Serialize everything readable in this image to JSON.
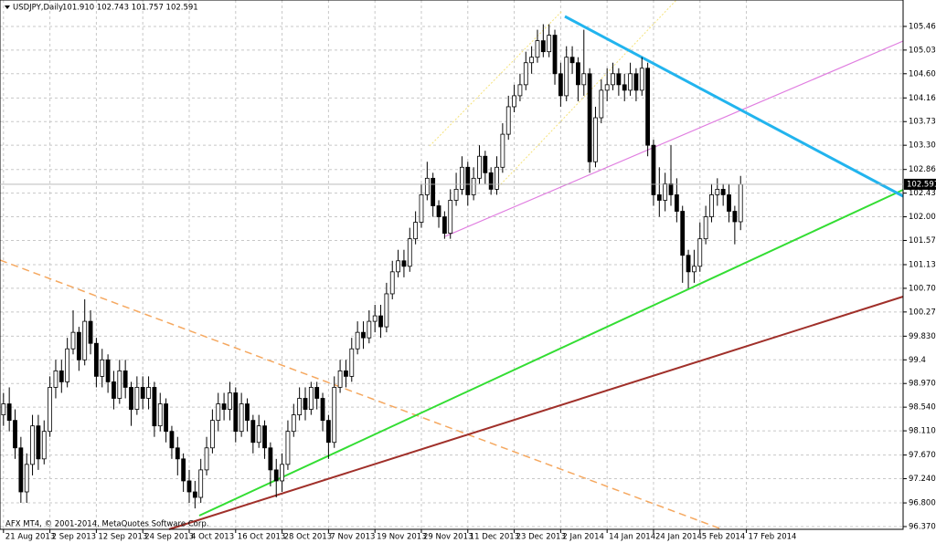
{
  "chart_data": {
    "type": "candlestick",
    "title": "USDJPY,Daily",
    "subtitle": "101.910 102.743 101.757 102.591",
    "annotation": "AFX MT4, © 2001-2014, MetaQuotes Software Corp.",
    "grid": true,
    "up_color": "#ffffff",
    "down_color": "#000000",
    "xlim": [
      -0.6,
      155
    ],
    "ylim": [
      96.32,
      105.94
    ],
    "xticks": [
      {
        "value": 0,
        "label": "21 Aug 2013"
      },
      {
        "value": 8,
        "label": "2 Sep 2013"
      },
      {
        "value": 16,
        "label": "12 Sep 2013"
      },
      {
        "value": 24,
        "label": "24 Sep 2013"
      },
      {
        "value": 32,
        "label": "4 Oct 2013"
      },
      {
        "value": 40,
        "label": "16 Oct 2013"
      },
      {
        "value": 48,
        "label": "28 Oct 2013"
      },
      {
        "value": 56,
        "label": "7 Nov 2013"
      },
      {
        "value": 64,
        "label": "19 Nov 2013"
      },
      {
        "value": 72,
        "label": "29 Nov 2013"
      },
      {
        "value": 80,
        "label": "11 Dec 2013"
      },
      {
        "value": 88,
        "label": "23 Dec 2013"
      },
      {
        "value": 96,
        "label": "2 Jan 2014"
      },
      {
        "value": 104,
        "label": "14 Jan 2014"
      },
      {
        "value": 112,
        "label": "24 Jan 2014"
      },
      {
        "value": 120,
        "label": "5 Feb 2014"
      },
      {
        "value": 128,
        "label": "17 Feb 2014"
      }
    ],
    "yticks": [
      {
        "value": 105.46,
        "label": "105.460"
      },
      {
        "value": 105.03,
        "label": "105.030"
      },
      {
        "value": 104.6,
        "label": "104.600"
      },
      {
        "value": 104.16,
        "label": "104.160"
      },
      {
        "value": 103.73,
        "label": "103.730"
      },
      {
        "value": 103.3,
        "label": "103.300"
      },
      {
        "value": 102.86,
        "label": "102.860"
      },
      {
        "value": 102.43,
        "label": "102.430"
      },
      {
        "value": 102.0,
        "label": "102.000"
      },
      {
        "value": 101.57,
        "label": "101.570"
      },
      {
        "value": 101.13,
        "label": "101.130"
      },
      {
        "value": 100.7,
        "label": "100.700"
      },
      {
        "value": 100.27,
        "label": "100.270"
      },
      {
        "value": 99.83,
        "label": "99.830"
      },
      99.4,
      {
        "value": 98.97,
        "label": "98.970"
      },
      {
        "value": 98.54,
        "label": "98.540"
      },
      {
        "value": 98.11,
        "label": "98.110"
      },
      {
        "value": 97.67,
        "label": "97.670"
      },
      {
        "value": 97.24,
        "label": "97.240"
      },
      {
        "value": 96.8,
        "label": "96.800"
      },
      {
        "value": 96.37,
        "label": "96.370"
      }
    ],
    "open": [
      98.4,
      98.6,
      98.3,
      97.8,
      97.0,
      97.5,
      98.2,
      97.6,
      98.1,
      98.9,
      99.2,
      99.0,
      99.6,
      99.9,
      99.4,
      100.1,
      99.7,
      99.1,
      99.4,
      99.0,
      98.7,
      99.2,
      98.9,
      98.5,
      98.9,
      98.7,
      98.9,
      98.2,
      98.6,
      98.1,
      97.8,
      97.6,
      97.2,
      97.0,
      96.9,
      97.4,
      97.8,
      98.3,
      98.6,
      98.5,
      98.8,
      98.1,
      98.6,
      98.3,
      97.9,
      98.2,
      97.8,
      97.4,
      97.2,
      97.5,
      98.1,
      98.4,
      98.7,
      98.5,
      98.9,
      98.7,
      98.3,
      97.9,
      98.9,
      99.2,
      99.1,
      99.6,
      99.9,
      99.8,
      100.1,
      100.2,
      100.0,
      100.6,
      101.0,
      101.2,
      101.1,
      101.6,
      101.9,
      102.4,
      102.7,
      102.2,
      102.0,
      101.7,
      102.3,
      102.5,
      102.9,
      102.4,
      102.7,
      103.1,
      102.8,
      102.5,
      102.9,
      103.5,
      104.0,
      104.2,
      104.4,
      104.8,
      104.9,
      105.2,
      105.0,
      105.3,
      104.6,
      104.2,
      104.9,
      104.8,
      104.4,
      104.6,
      103.0,
      103.8,
      104.3,
      104.4,
      104.6,
      104.4,
      104.3,
      104.6,
      104.3,
      104.7,
      103.3,
      102.4,
      102.3,
      102.6,
      102.4,
      102.1,
      101.3,
      101.0,
      101.1,
      101.6,
      102.0,
      102.4,
      102.5,
      102.4,
      102.1,
      101.91
    ],
    "high": [
      98.8,
      98.9,
      98.5,
      98.0,
      97.7,
      98.4,
      98.4,
      98.3,
      99.1,
      99.4,
      99.4,
      99.8,
      100.3,
      100.0,
      100.5,
      100.3,
      99.8,
      99.6,
      99.5,
      99.2,
      99.4,
      99.4,
      99.0,
      99.1,
      99.1,
      99.1,
      99.0,
      98.8,
      98.7,
      98.2,
      98.0,
      97.7,
      97.4,
      97.2,
      97.6,
      98.0,
      98.5,
      98.8,
      98.8,
      99.0,
      98.9,
      98.8,
      98.7,
      98.4,
      98.4,
      98.3,
      97.9,
      97.6,
      97.7,
      98.3,
      98.6,
      98.9,
      98.9,
      99.0,
      99.0,
      98.8,
      98.4,
      99.1,
      99.4,
      99.4,
      99.8,
      100.1,
      100.1,
      100.3,
      100.4,
      100.4,
      100.8,
      101.2,
      101.4,
      101.4,
      101.8,
      102.1,
      102.6,
      103.0,
      102.8,
      102.3,
      102.1,
      102.5,
      102.8,
      103.1,
      103.0,
      102.9,
      103.3,
      103.2,
      102.9,
      103.1,
      103.7,
      104.2,
      104.4,
      104.6,
      105.0,
      105.1,
      105.4,
      105.5,
      105.5,
      105.4,
      104.8,
      105.1,
      105.1,
      104.9,
      105.4,
      104.7,
      104.0,
      104.5,
      104.7,
      104.8,
      104.7,
      104.6,
      104.8,
      104.7,
      104.9,
      104.8,
      103.4,
      102.9,
      102.8,
      103.3,
      102.7,
      102.2,
      101.4,
      101.4,
      101.9,
      102.2,
      102.6,
      102.7,
      102.6,
      102.6,
      102.2,
      102.743
    ],
    "low": [
      98.2,
      98.1,
      97.6,
      96.8,
      96.8,
      97.3,
      97.4,
      97.5,
      98.0,
      98.7,
      98.8,
      98.9,
      99.5,
      99.2,
      99.3,
      99.5,
      98.9,
      98.9,
      98.8,
      98.5,
      98.6,
      98.7,
      98.2,
      98.4,
      98.5,
      98.5,
      98.0,
      98.1,
      97.9,
      97.6,
      97.3,
      97.0,
      96.8,
      96.7,
      96.8,
      97.3,
      97.7,
      98.1,
      98.3,
      98.3,
      97.9,
      98.0,
      98.1,
      97.7,
      97.8,
      97.6,
      97.1,
      96.9,
      97.0,
      97.4,
      98.0,
      98.3,
      98.3,
      98.4,
      98.5,
      98.1,
      97.6,
      97.8,
      98.8,
      98.9,
      99.0,
      99.5,
      99.6,
      99.7,
      99.9,
      99.8,
      99.9,
      100.5,
      100.9,
      100.9,
      101.0,
      101.5,
      101.8,
      102.3,
      102.0,
      101.8,
      101.6,
      101.6,
      102.2,
      102.4,
      102.2,
      102.3,
      102.6,
      102.6,
      102.4,
      102.4,
      102.8,
      103.4,
      103.9,
      104.1,
      104.3,
      104.6,
      104.8,
      104.9,
      104.9,
      104.4,
      104.0,
      104.1,
      104.6,
      104.1,
      104.2,
      102.8,
      102.9,
      103.7,
      104.1,
      104.3,
      104.2,
      104.1,
      104.2,
      104.1,
      104.2,
      103.1,
      102.2,
      102.0,
      102.1,
      102.2,
      101.9,
      100.8,
      100.7,
      100.8,
      101.0,
      101.5,
      101.9,
      102.2,
      102.2,
      101.9,
      101.5,
      101.757
    ],
    "close": [
      98.6,
      98.3,
      97.8,
      97.0,
      97.5,
      98.2,
      97.6,
      98.1,
      98.9,
      99.2,
      99.0,
      99.6,
      99.9,
      99.4,
      100.1,
      99.7,
      99.1,
      99.4,
      99.0,
      98.7,
      99.2,
      98.9,
      98.5,
      98.9,
      98.7,
      98.9,
      98.2,
      98.6,
      98.1,
      97.8,
      97.6,
      97.2,
      97.0,
      96.9,
      97.4,
      97.8,
      98.3,
      98.6,
      98.5,
      98.8,
      98.1,
      98.6,
      98.3,
      97.9,
      98.2,
      97.8,
      97.4,
      97.2,
      97.5,
      98.1,
      98.4,
      98.7,
      98.5,
      98.9,
      98.7,
      98.3,
      97.9,
      98.9,
      99.2,
      99.1,
      99.6,
      99.9,
      99.8,
      100.1,
      100.2,
      100.0,
      100.6,
      101.0,
      101.2,
      101.1,
      101.6,
      101.9,
      102.4,
      102.7,
      102.2,
      102.0,
      101.7,
      102.3,
      102.5,
      102.9,
      102.4,
      102.7,
      103.1,
      102.8,
      102.5,
      102.9,
      103.5,
      104.0,
      104.2,
      104.4,
      104.8,
      104.9,
      105.2,
      105.0,
      105.3,
      104.6,
      104.2,
      104.9,
      104.8,
      104.4,
      104.6,
      103.0,
      103.8,
      104.3,
      104.4,
      104.6,
      104.4,
      104.3,
      104.6,
      104.3,
      104.7,
      103.3,
      102.4,
      102.3,
      102.6,
      102.4,
      102.1,
      101.3,
      101.0,
      101.1,
      101.6,
      102.0,
      102.4,
      102.5,
      102.4,
      102.1,
      101.91,
      102.591
    ]
  }
}
